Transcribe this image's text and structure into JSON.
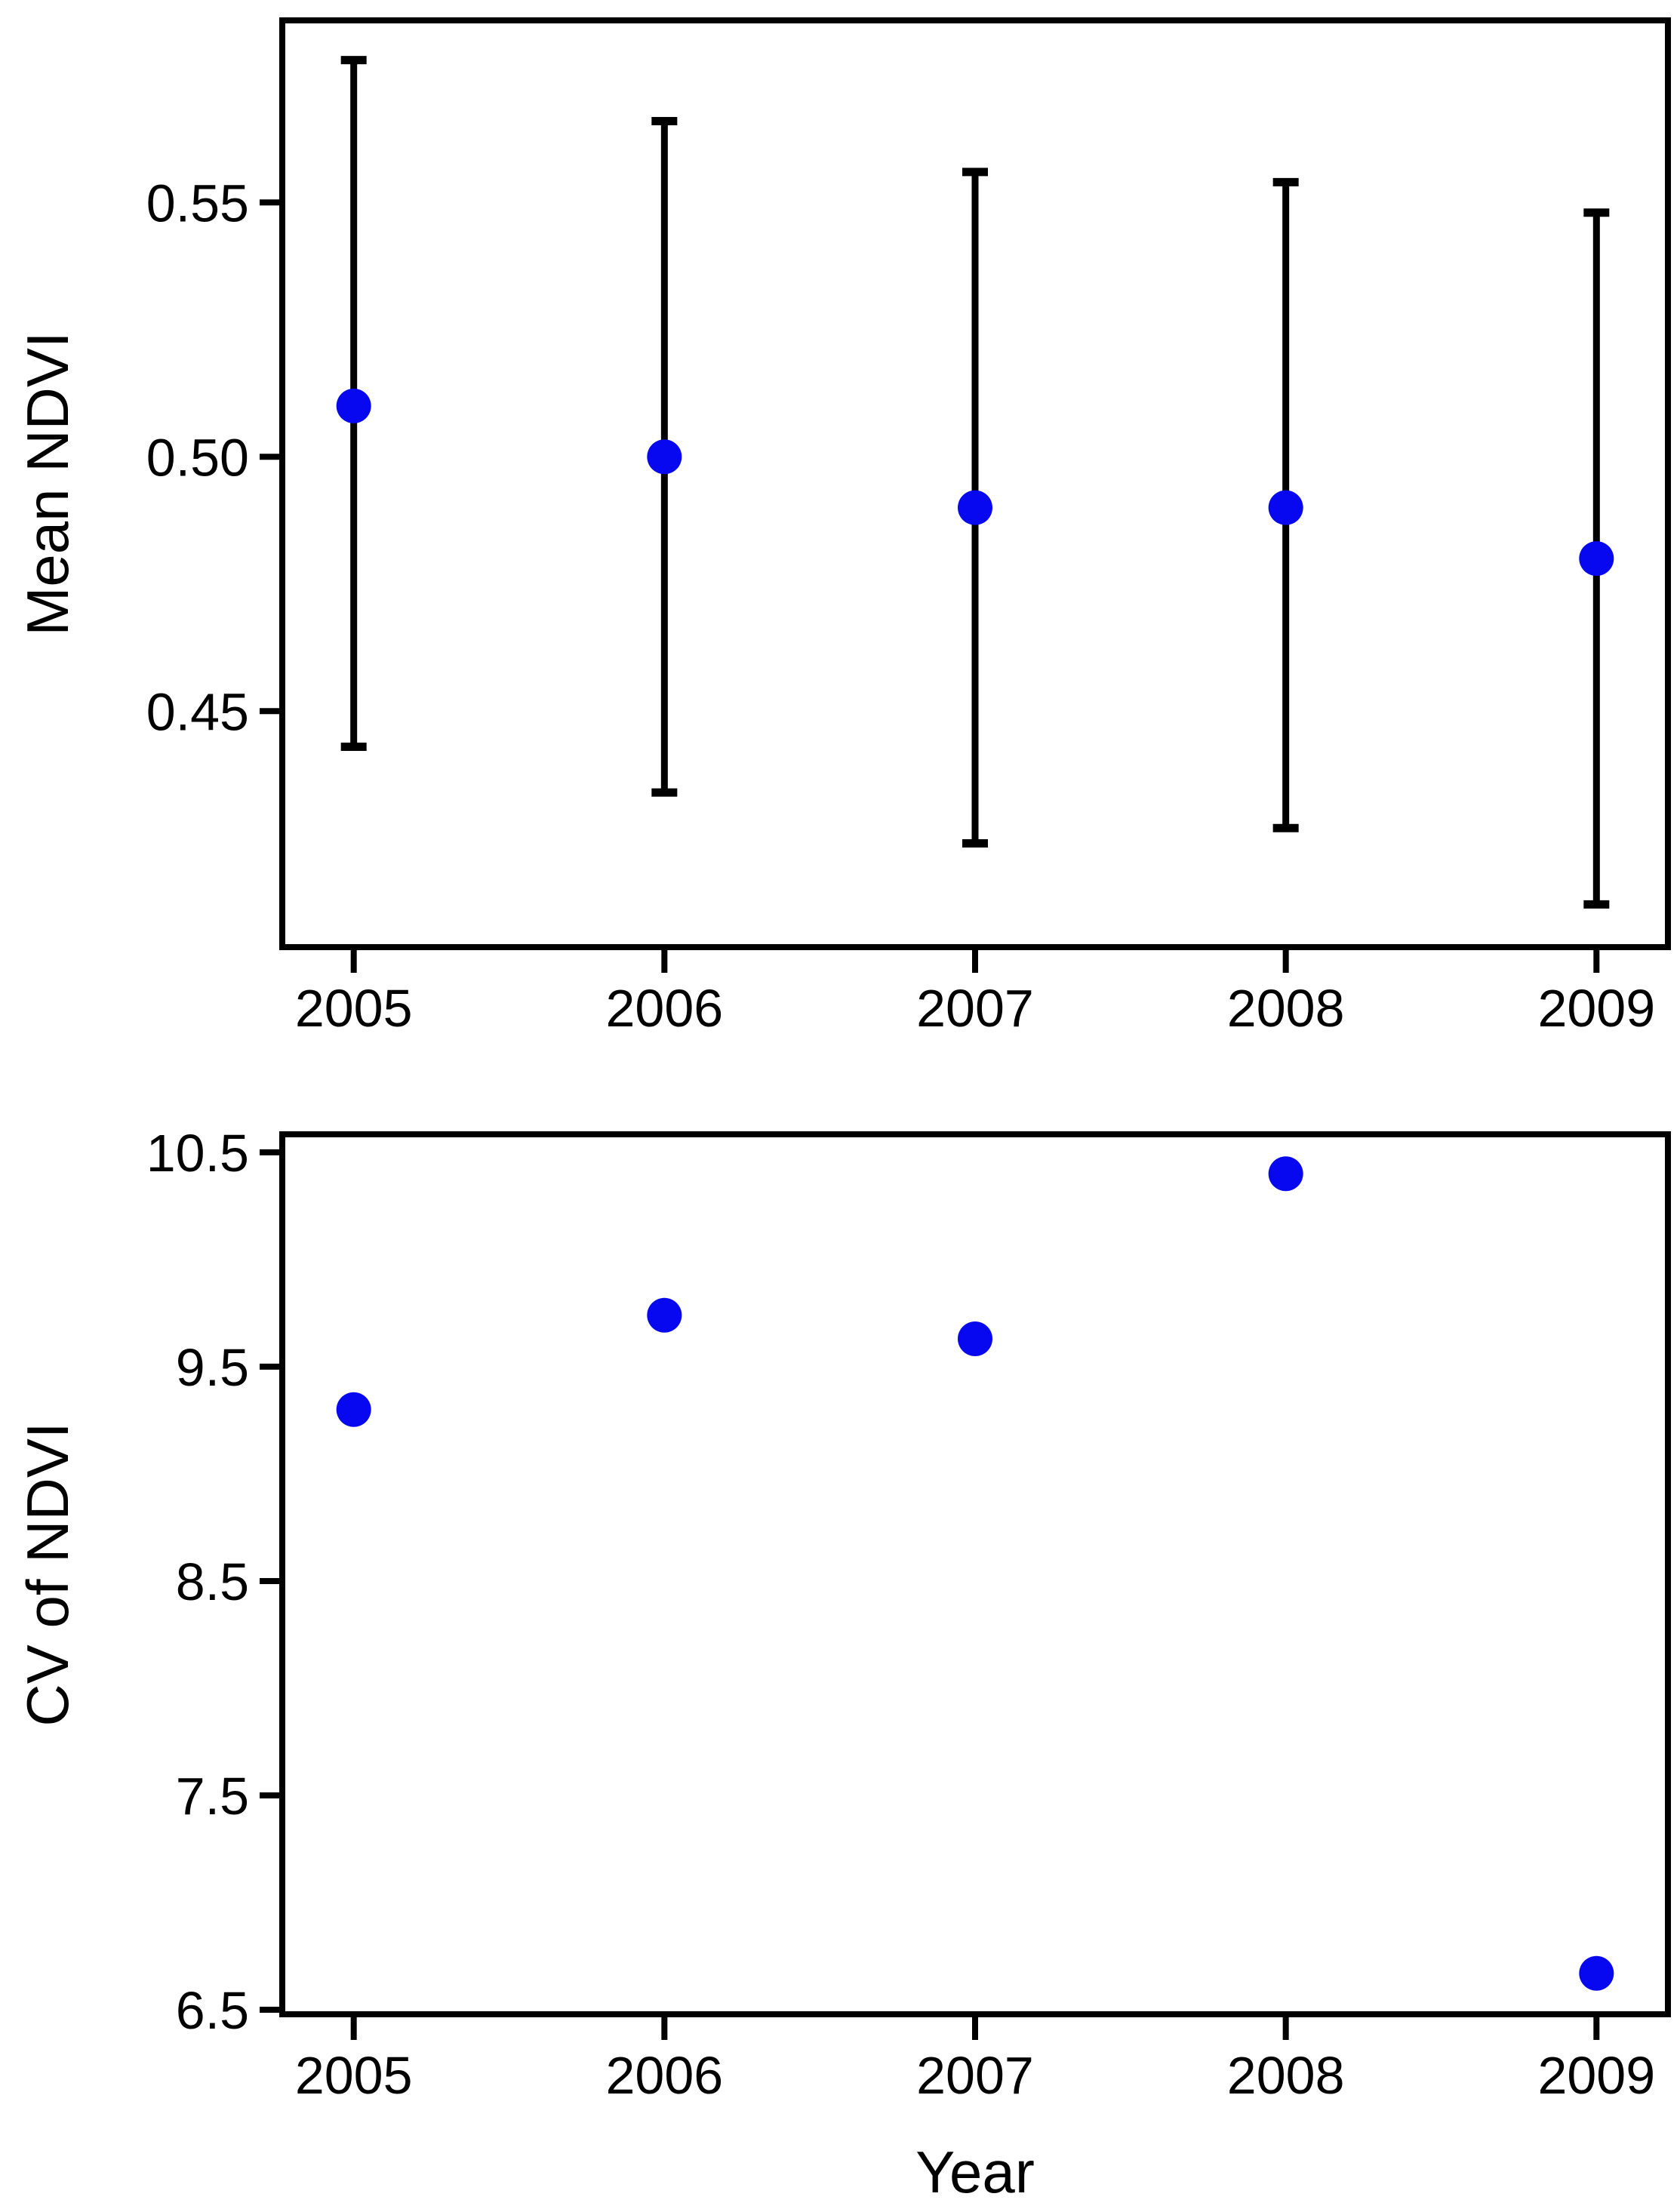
{
  "figure": {
    "background_color": "#ffffff",
    "axis_color": "#000000"
  },
  "chart_data": [
    {
      "type": "scatter",
      "subtype": "points-with-error-bars",
      "title": "",
      "xlabel": "",
      "ylabel": "Mean NDVI",
      "x": [
        2005,
        2006,
        2007,
        2008,
        2009
      ],
      "x_tick_labels": [
        "2005",
        "2006",
        "2007",
        "2008",
        "2009"
      ],
      "y_tick_values": [
        0.55,
        0.5,
        0.45
      ],
      "y_tick_labels": [
        "0.55",
        "0.50",
        "0.45"
      ],
      "xlim": [
        2004.77,
        2009.23
      ],
      "ylim": [
        0.4036,
        0.5858
      ],
      "grid": false,
      "legend": "none",
      "marker_color": "#0808f0",
      "error_bar_color": "#000000",
      "series": [
        {
          "name": "Mean NDVI",
          "values": [
            0.51,
            0.5,
            0.49,
            0.49,
            0.48
          ],
          "error_low": [
            0.443,
            0.434,
            0.424,
            0.427,
            0.412
          ],
          "error_high": [
            0.578,
            0.566,
            0.556,
            0.554,
            0.548
          ]
        }
      ]
    },
    {
      "type": "scatter",
      "subtype": "points",
      "title": "",
      "xlabel": "Year",
      "ylabel": "CV of NDVI",
      "x": [
        2005,
        2006,
        2007,
        2008,
        2009
      ],
      "x_tick_labels": [
        "2005",
        "2006",
        "2007",
        "2008",
        "2009"
      ],
      "y_tick_values": [
        10.5,
        9.5,
        8.5,
        7.5,
        6.5
      ],
      "y_tick_labels": [
        "10.5",
        "9.5",
        "8.5",
        "7.5",
        "6.5"
      ],
      "xlim": [
        2004.77,
        2009.23
      ],
      "ylim": [
        6.479,
        10.584
      ],
      "grid": false,
      "legend": "none",
      "marker_color": "#0808f0",
      "series": [
        {
          "name": "CV of NDVI",
          "values": [
            9.3,
            9.74,
            9.63,
            10.4,
            6.67
          ]
        }
      ]
    }
  ]
}
